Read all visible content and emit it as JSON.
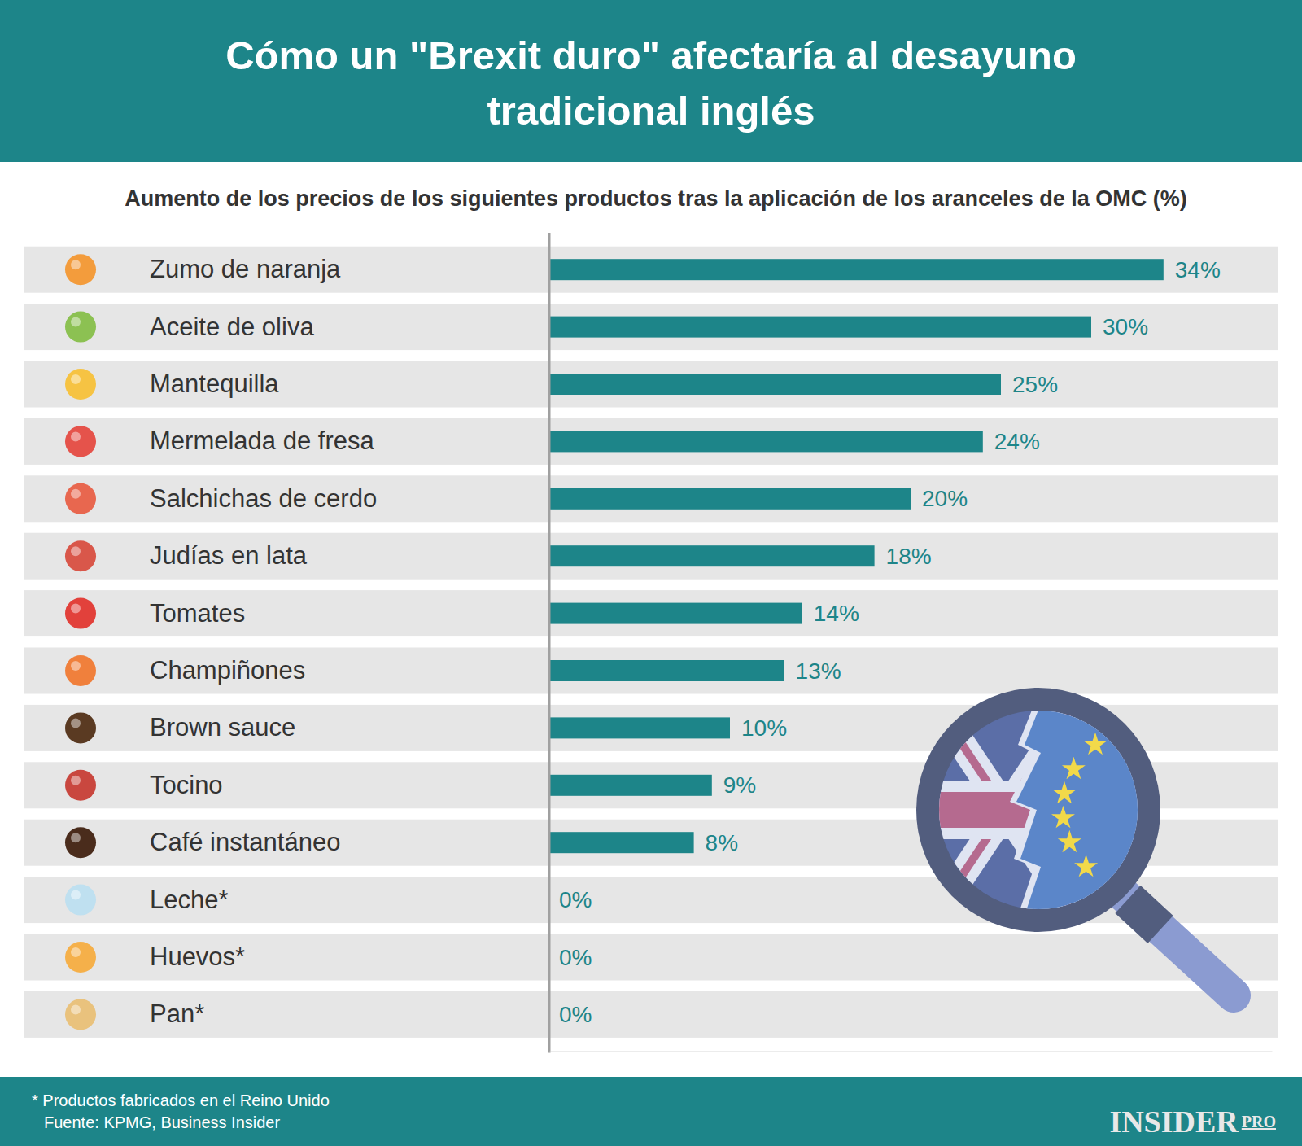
{
  "chart_data": {
    "type": "bar",
    "title": "Cómo un \"Brexit duro\" afectaría al desayuno tradicional inglés",
    "subtitle": "Aumento de los precios de los siguientes productos tras la aplicación de los aranceles de la OMC (%)",
    "categories": [
      "Zumo de naranja",
      "Aceite de oliva",
      "Mantequilla",
      "Mermelada de fresa",
      "Salchichas de cerdo",
      "Judías en lata",
      "Tomates",
      "Champiñones",
      "Brown sauce",
      "Tocino",
      "Café instantáneo",
      "Leche*",
      "Huevos*",
      "Pan*"
    ],
    "values": [
      34,
      30,
      25,
      24,
      20,
      18,
      14,
      13,
      10,
      9,
      8,
      0,
      0,
      0
    ],
    "value_labels": [
      "34%",
      "30%",
      "25%",
      "24%",
      "20%",
      "18%",
      "14%",
      "13%",
      "10%",
      "9%",
      "8%",
      "0%",
      "0%",
      "0%"
    ],
    "color": "#1d8589",
    "orientation": "horizontal",
    "data_labels": true,
    "grid": false,
    "tick_labels": "y",
    "xlim": [
      0,
      40
    ],
    "xticks": [],
    "annotations": [
      "* Productos fabricados en el Reino Unido",
      "Fuente: KPMG, Business Insider",
      "INSIDER",
      "PRO"
    ]
  }
}
